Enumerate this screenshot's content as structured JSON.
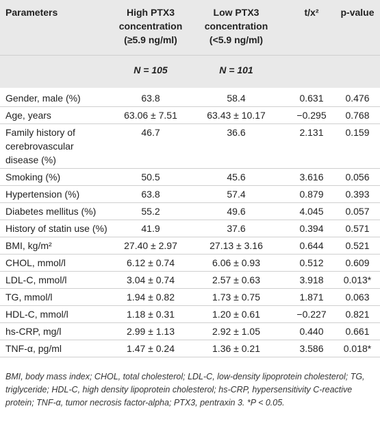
{
  "table": {
    "header": {
      "columns": [
        [
          "Parameters"
        ],
        [
          "High PTX3",
          "concentration",
          "(≥5.9 ng/ml)"
        ],
        [
          "Low PTX3",
          "concentration",
          "(<5.9 ng/ml)"
        ],
        [
          "t/x²"
        ],
        [
          "p-value"
        ]
      ],
      "n": [
        "N = 105",
        "N = 101"
      ]
    },
    "rows": [
      [
        [
          "Gender, male (%)"
        ],
        "63.8",
        "58.4",
        "0.631",
        "0.476"
      ],
      [
        [
          "Age, years"
        ],
        "63.06 ± 7.51",
        "63.43 ± 10.17",
        "−0.295",
        "0.768"
      ],
      [
        [
          "Family history of",
          "cerebrovascular",
          "disease (%)"
        ],
        "46.7",
        "36.6",
        "2.131",
        "0.159"
      ],
      [
        [
          "Smoking (%)"
        ],
        "50.5",
        "45.6",
        "3.616",
        "0.056"
      ],
      [
        [
          "Hypertension (%)"
        ],
        "63.8",
        "57.4",
        "0.879",
        "0.393"
      ],
      [
        [
          "Diabetes mellitus (%)"
        ],
        "55.2",
        "49.6",
        "4.045",
        "0.057"
      ],
      [
        [
          "History of statin use (%)"
        ],
        "41.9",
        "37.6",
        "0.394",
        "0.571"
      ],
      [
        [
          "BMI, kg/m²"
        ],
        "27.40 ± 2.97",
        "27.13 ± 3.16",
        "0.644",
        "0.521"
      ],
      [
        [
          "CHOL, mmol/l"
        ],
        "6.12 ± 0.74",
        "6.06 ± 0.93",
        "0.512",
        "0.609"
      ],
      [
        [
          "LDL-C, mmol/l"
        ],
        "3.04 ± 0.74",
        "2.57 ± 0.63",
        "3.918",
        "0.013*"
      ],
      [
        [
          "TG, mmol/l"
        ],
        "1.94 ± 0.82",
        "1.73 ± 0.75",
        "1.871",
        "0.063"
      ],
      [
        [
          "HDL-C, mmol/l"
        ],
        "1.18 ± 0.31",
        "1.20 ± 0.61",
        "−0.227",
        "0.821"
      ],
      [
        [
          "hs-CRP, mg/l"
        ],
        "2.99 ± 1.13",
        "2.92 ± 1.05",
        "0.440",
        "0.661"
      ],
      [
        [
          "TNF-α, pg/ml"
        ],
        "1.47 ± 0.24",
        "1.36 ± 0.21",
        "3.586",
        "0.018*"
      ]
    ],
    "footnote": "BMI, body mass index; CHOL, total cholesterol; LDL-C, low-density lipoprotein cholesterol; TG, triglyceride; HDL-C, high density lipoprotein cholesterol; hs-CRP, hypersensitivity C-reactive protein; TNF-α, tumor necrosis factor-alpha; PTX3, pentraxin 3. *P < 0.05."
  }
}
